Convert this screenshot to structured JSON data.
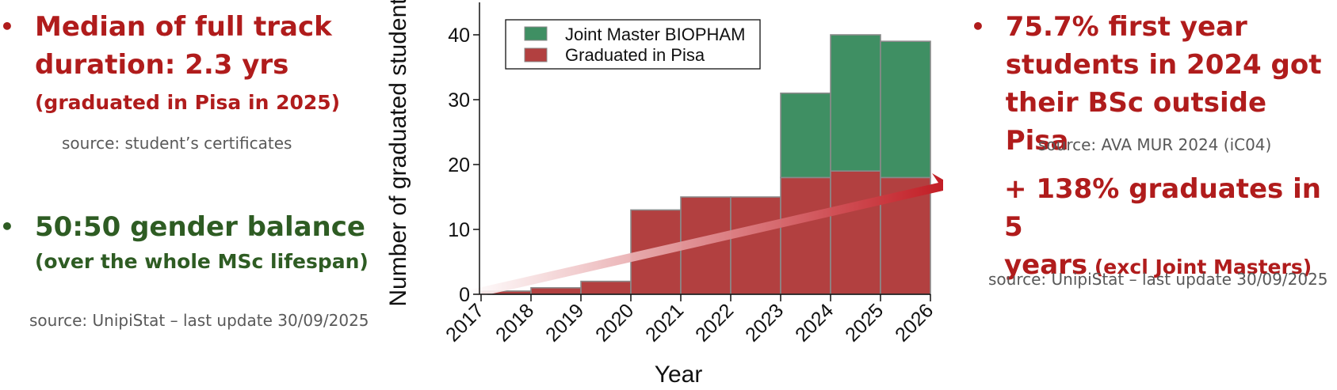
{
  "left": {
    "point1": {
      "line1": "Median of full track",
      "line2": "duration: 2.3 yrs",
      "line3": "(graduated in Pisa in 2025)",
      "source": "source: student’s certificates"
    },
    "point2": {
      "line1": "50:50 gender balance",
      "line2": "(over the whole MSc lifespan)",
      "source": "source: UnipiStat – last update 30/09/2025"
    }
  },
  "right": {
    "point1": {
      "line1": "75.7% first year",
      "line2": "students in 2024 got",
      "line3": "their BSc outside Pisa",
      "source": "source: AVA MUR 2024 (iC04)"
    },
    "point2": {
      "line1": "+ 138% graduates in 5",
      "line2a": "years",
      "line2b": " (excl Joint Masters)",
      "source": "source: UnipiStat – last update 30/09/2025"
    }
  },
  "bullet_char": "•",
  "colors": {
    "red_text": "#b01c1c",
    "green_text": "#2e5c23",
    "bar_red": "#b24040",
    "bar_green": "#3f8f63",
    "bar_edge": "#8a8a8a"
  },
  "chart_data": {
    "type": "bar",
    "stacked": true,
    "xlabel": "Year",
    "ylabel": "Number of graduated students",
    "ylim": [
      0,
      45
    ],
    "yticks": [
      0,
      10,
      20,
      30,
      40
    ],
    "xticks": [
      "2017",
      "2018",
      "2019",
      "2020",
      "2021",
      "2022",
      "2023",
      "2024",
      "2025",
      "2026"
    ],
    "bins": [
      "2017",
      "2018",
      "2019",
      "2020",
      "2021",
      "2022",
      "2023",
      "2024",
      "2025"
    ],
    "series": [
      {
        "name": "Graduated in Pisa",
        "color": "#b24040",
        "values": [
          0.5,
          1,
          2,
          13,
          15,
          15,
          18,
          19,
          18
        ]
      },
      {
        "name": "Joint Master BIOPHAM",
        "color": "#3f8f63",
        "values": [
          0,
          0,
          0,
          0,
          0,
          0,
          13,
          21,
          21
        ]
      }
    ],
    "legend_position": "top-left",
    "grid": false,
    "trend_arrow": true
  }
}
